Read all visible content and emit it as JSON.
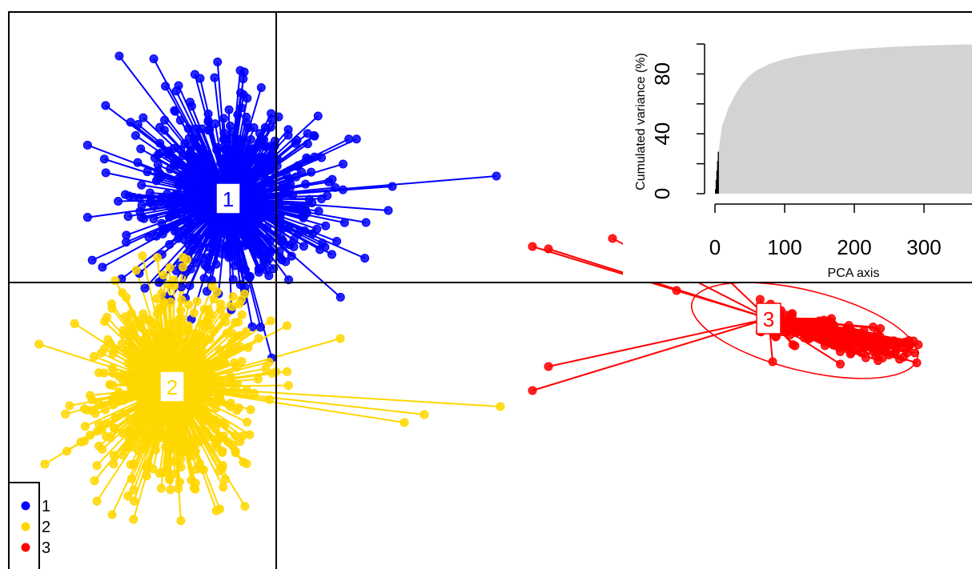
{
  "chart_data": [
    {
      "type": "scatter",
      "subtype": "dapc-star-plot",
      "title": "",
      "xlabel": "",
      "ylabel": "",
      "xlim": [
        -3.3,
        8.7
      ],
      "ylim": [
        -3.5,
        3.4
      ],
      "axes_through_origin": true,
      "grid": false,
      "legend_position": "bottom-left",
      "legend": [
        "1",
        "2",
        "3"
      ],
      "series": [
        {
          "name": "1",
          "color": "#0000FF",
          "centroid": [
            -0.6,
            1.05
          ],
          "n_points": 650,
          "ellipse": null,
          "outliers": [
            [
              2.75,
              1.33
            ],
            [
              1.45,
              1.2
            ],
            [
              1.4,
              0.9
            ],
            [
              -1.35,
              1.6
            ],
            [
              -1.25,
              1.1
            ],
            [
              -0.45,
              2.65
            ],
            [
              -0.95,
              2.55
            ]
          ]
        },
        {
          "name": "2",
          "color": "#FFD700",
          "centroid": [
            -1.3,
            -1.3
          ],
          "n_points": 650,
          "ellipse": null,
          "outliers": [
            [
              2.8,
              -1.55
            ],
            [
              1.85,
              -1.65
            ],
            [
              1.6,
              -1.75
            ],
            [
              0.8,
              -0.7
            ],
            [
              -2.3,
              -1.6
            ],
            [
              -2.05,
              -2.9
            ],
            [
              -0.55,
              -0.3
            ]
          ]
        },
        {
          "name": "3",
          "color": "#FF0000",
          "centroid": [
            6.15,
            -0.45
          ],
          "n_points": 150,
          "ellipse": {
            "center": [
              6.6,
              -0.6
            ],
            "rx": 1.45,
            "ry": 0.5,
            "angle_deg": 14
          },
          "outliers": [
            [
              3.2,
              -1.35
            ],
            [
              3.4,
              -1.05
            ],
            [
              3.2,
              0.45
            ],
            [
              3.4,
              0.42
            ],
            [
              4.2,
              0.55
            ],
            [
              5.1,
              0.55
            ],
            [
              5.0,
              -0.1
            ],
            [
              6.2,
              -0.99
            ],
            [
              7.7,
              -0.75
            ]
          ]
        }
      ]
    },
    {
      "type": "area",
      "xlabel": "PCA axis",
      "ylabel": "Cumulated variance (%)",
      "x_ticks": [
        "0",
        "100",
        "200",
        "300"
      ],
      "y_ticks": [
        "0",
        "40",
        "80"
      ],
      "xlim": [
        0,
        400
      ],
      "ylim": [
        0,
        100
      ],
      "retained_axes": 5,
      "x": [
        1,
        5,
        10,
        20,
        30,
        40,
        50,
        60,
        80,
        100,
        120,
        150,
        200,
        250,
        300,
        350,
        400
      ],
      "y": [
        3,
        28,
        45,
        58,
        67,
        74,
        79,
        82.5,
        87,
        90,
        92,
        94,
        96.5,
        98,
        99,
        99.6,
        100
      ]
    }
  ]
}
